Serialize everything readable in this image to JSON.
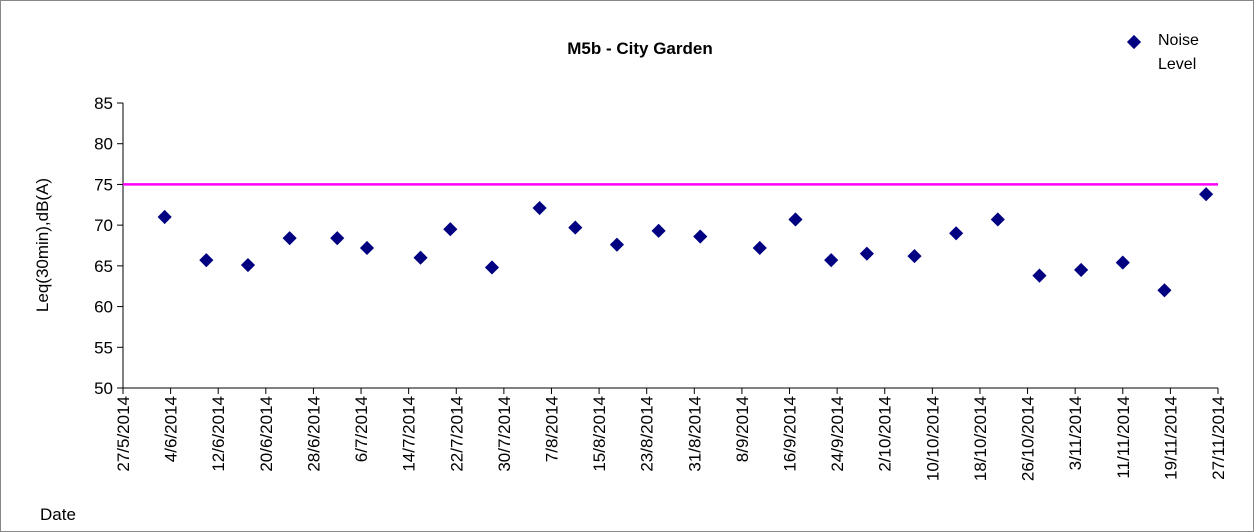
{
  "chart_data": {
    "type": "scatter",
    "title": "M5b - City Garden",
    "x_label": "Date",
    "y_label": "Leq(30min),dB(A)",
    "xlim": [
      "27/5/2014",
      "27/11/2014"
    ],
    "xticks": [
      "27/5/2014",
      "4/6/2014",
      "12/6/2014",
      "20/6/2014",
      "28/6/2014",
      "6/7/2014",
      "14/7/2014",
      "22/7/2014",
      "30/7/2014",
      "7/8/2014",
      "15/8/2014",
      "23/8/2014",
      "31/8/2014",
      "8/9/2014",
      "16/9/2014",
      "24/9/2014",
      "2/10/2014",
      "10/10/2014",
      "18/10/2014",
      "26/10/2014",
      "3/11/2014",
      "11/11/2014",
      "19/11/2014",
      "27/11/2014"
    ],
    "ylim": [
      50,
      85
    ],
    "yticks": [
      50,
      55,
      60,
      65,
      70,
      75,
      80,
      85
    ],
    "limit_line": {
      "value": 75,
      "color": "#ff00ff"
    },
    "legend_position": "top-right",
    "series": [
      {
        "name": "Noise Level",
        "color": "#000080",
        "x": [
          "3/6/2014",
          "10/6/2014",
          "17/6/2014",
          "24/6/2014",
          "2/7/2014",
          "7/7/2014",
          "16/7/2014",
          "21/7/2014",
          "28/7/2014",
          "5/8/2014",
          "11/8/2014",
          "18/8/2014",
          "25/8/2014",
          "1/9/2014",
          "11/9/2014",
          "17/9/2014",
          "23/9/2014",
          "29/9/2014",
          "7/10/2014",
          "14/10/2014",
          "21/10/2014",
          "28/10/2014",
          "4/11/2014",
          "11/11/2014",
          "18/11/2014",
          "25/11/2014"
        ],
        "values": [
          71,
          65.7,
          65.1,
          68.4,
          68.4,
          67.2,
          66,
          69.5,
          64.8,
          72.1,
          69.7,
          67.6,
          69.3,
          68.6,
          67.2,
          70.7,
          65.7,
          66.5,
          66.2,
          69,
          70.7,
          63.8,
          64.5,
          65.4,
          62,
          73.8
        ]
      }
    ]
  }
}
